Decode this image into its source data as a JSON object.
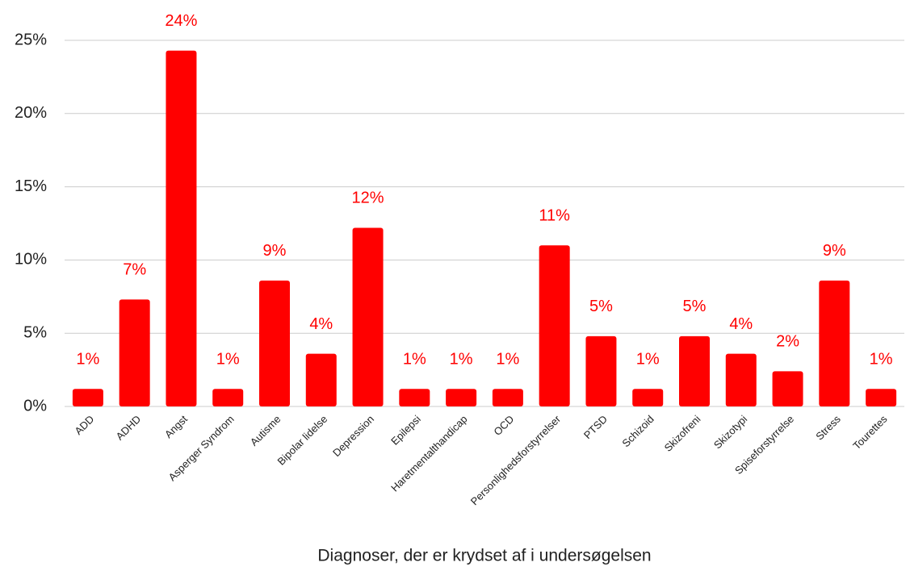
{
  "chart_data": {
    "type": "bar",
    "x_label": "Diagnoser, der er krydset af i undersøgelsen",
    "categories": [
      "ADD",
      "ADHD",
      "Angst",
      "Asperger Syndrom",
      "Autisme",
      "Bipolar lidelse",
      "Depression",
      "Epilepsi",
      "Haretmentalthandicap",
      "OCD",
      "Personlighedsforstyrrelser",
      "PTSD",
      "Schizoid",
      "Skizofreni",
      "Skizotypi",
      "Spiseforstyrrelse",
      "Stress",
      "Tourettes"
    ],
    "values": [
      1.2,
      7.3,
      24.3,
      1.2,
      8.6,
      3.6,
      12.2,
      1.2,
      1.2,
      1.2,
      11.0,
      4.8,
      1.2,
      4.8,
      3.6,
      2.4,
      8.6,
      1.2
    ],
    "value_labels": [
      "1%",
      "7%",
      "24%",
      "1%",
      "9%",
      "4%",
      "12%",
      "1%",
      "1%",
      "1%",
      "11%",
      "5%",
      "1%",
      "5%",
      "4%",
      "2%",
      "9%",
      "1%"
    ],
    "color": "#ff0000",
    "ylim": [
      0,
      25
    ],
    "yticks": [
      {
        "value": 0,
        "label": "0%"
      },
      {
        "value": 5,
        "label": "5%"
      },
      {
        "value": 10,
        "label": "10%"
      },
      {
        "value": 15,
        "label": "15%"
      },
      {
        "value": 20,
        "label": "20%"
      },
      {
        "value": 25,
        "label": "25%"
      }
    ],
    "grid": true
  }
}
